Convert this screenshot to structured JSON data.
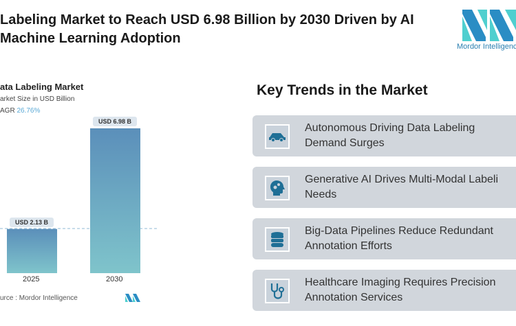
{
  "header": {
    "title_line1": "Labeling Market to Reach USD 6.98 Billion by 2030 Driven by AI",
    "title_line2": "Machine Learning Adoption",
    "logo_text": "Mordor Intelligence"
  },
  "chart_data": {
    "type": "bar",
    "title": "ata Labeling Market",
    "subtitle": "arket Size in USD Billion",
    "cagr_label": "AGR",
    "cagr_value": "26.76%",
    "categories": [
      "2025",
      "2030"
    ],
    "values": [
      2.13,
      6.98
    ],
    "value_labels": [
      "USD 2.13 B",
      "USD 6.98 B"
    ],
    "ylim": [
      0,
      7.5
    ],
    "source": "urce :  Mordor Intelligence",
    "colors": {
      "top": "#5b8fba",
      "bottom": "#7fc4cb"
    }
  },
  "trends": {
    "title": "Key Trends in the Market",
    "items": [
      {
        "line1": "Autonomous Driving Data Labeling",
        "line2": "Demand Surges",
        "icon": "car-icon"
      },
      {
        "line1": "Generative AI Drives Multi-Modal Labeli",
        "line2": "Needs",
        "icon": "brain-gears-icon"
      },
      {
        "line1": "Big-Data Pipelines Reduce Redundant",
        "line2": "Annotation Efforts",
        "icon": "database-icon"
      },
      {
        "line1": "Healthcare Imaging Requires Precision",
        "line2": "Annotation Services",
        "icon": "stethoscope-icon"
      }
    ]
  }
}
